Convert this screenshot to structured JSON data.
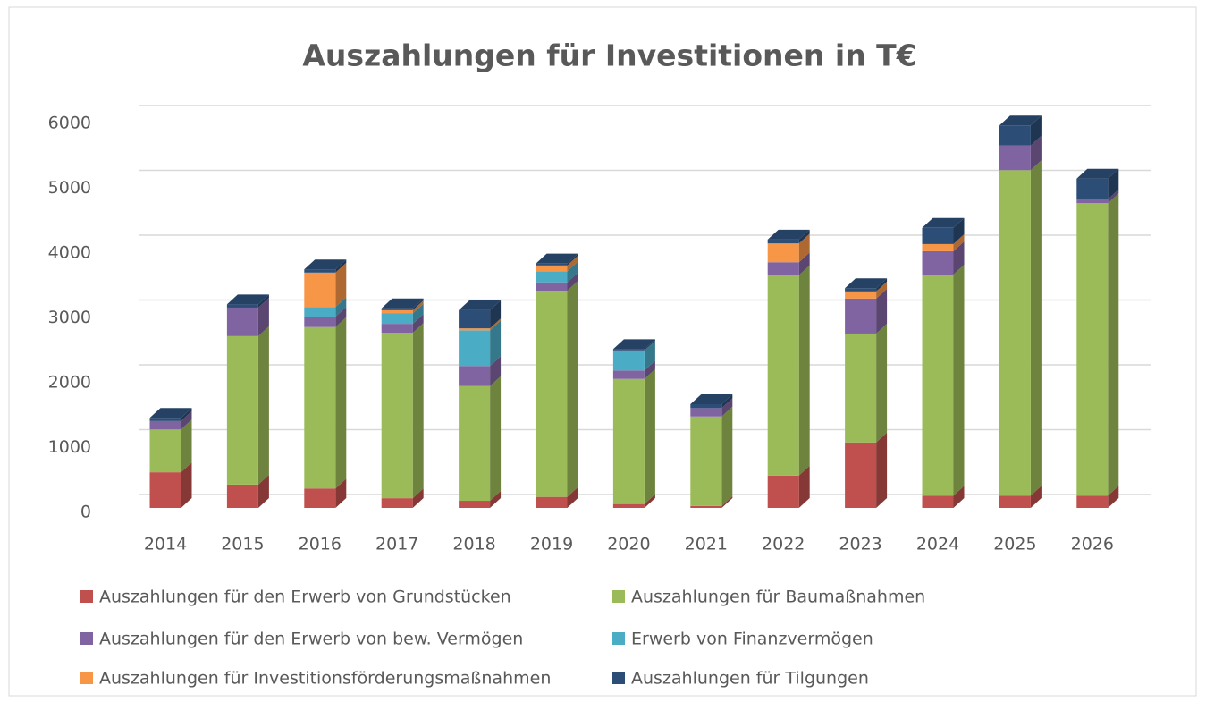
{
  "chart_data": {
    "type": "bar3d_stacked",
    "title": "Auszahlungen für Investitionen in T€",
    "categories": [
      "2014",
      "2015",
      "2016",
      "2017",
      "2018",
      "2019",
      "2020",
      "2021",
      "2022",
      "2023",
      "2024",
      "2025",
      "2026"
    ],
    "series": [
      {
        "name": "Auszahlungen für den Erwerb von Grundstücken",
        "color": "#c0504d",
        "values": [
          550,
          360,
          300,
          150,
          110,
          170,
          60,
          30,
          500,
          1010,
          190,
          190,
          190
        ]
      },
      {
        "name": "Auszahlungen für Baumaßnahmen",
        "color": "#9bbb59",
        "values": [
          660,
          2290,
          2490,
          2550,
          1770,
          3180,
          1930,
          1380,
          3090,
          1680,
          3410,
          5020,
          4510
        ]
      },
      {
        "name": "Auszahlungen für den Erwerb von bew. Vermögen",
        "color": "#8064a2",
        "values": [
          130,
          440,
          160,
          140,
          310,
          130,
          130,
          130,
          200,
          540,
          360,
          380,
          60
        ]
      },
      {
        "name": "Erwerb von Finanzvermögen",
        "color": "#4bacc6",
        "values": [
          0,
          0,
          150,
          160,
          550,
          170,
          310,
          0,
          0,
          0,
          0,
          0,
          0
        ]
      },
      {
        "name": "Auszahlungen für Investitionsförderungsmaßnahmen",
        "color": "#f79646",
        "values": [
          0,
          0,
          530,
          50,
          30,
          90,
          0,
          0,
          290,
          110,
          110,
          0,
          0
        ]
      },
      {
        "name": "Auszahlungen für Tilgungen",
        "color": "#2c4d75",
        "values": [
          50,
          50,
          50,
          30,
          280,
          30,
          20,
          60,
          60,
          50,
          250,
          310,
          320
        ]
      }
    ],
    "ylim": [
      0,
      6000
    ],
    "yticks": [
      0,
      1000,
      2000,
      3000,
      4000,
      5000,
      6000
    ],
    "grid": true
  }
}
